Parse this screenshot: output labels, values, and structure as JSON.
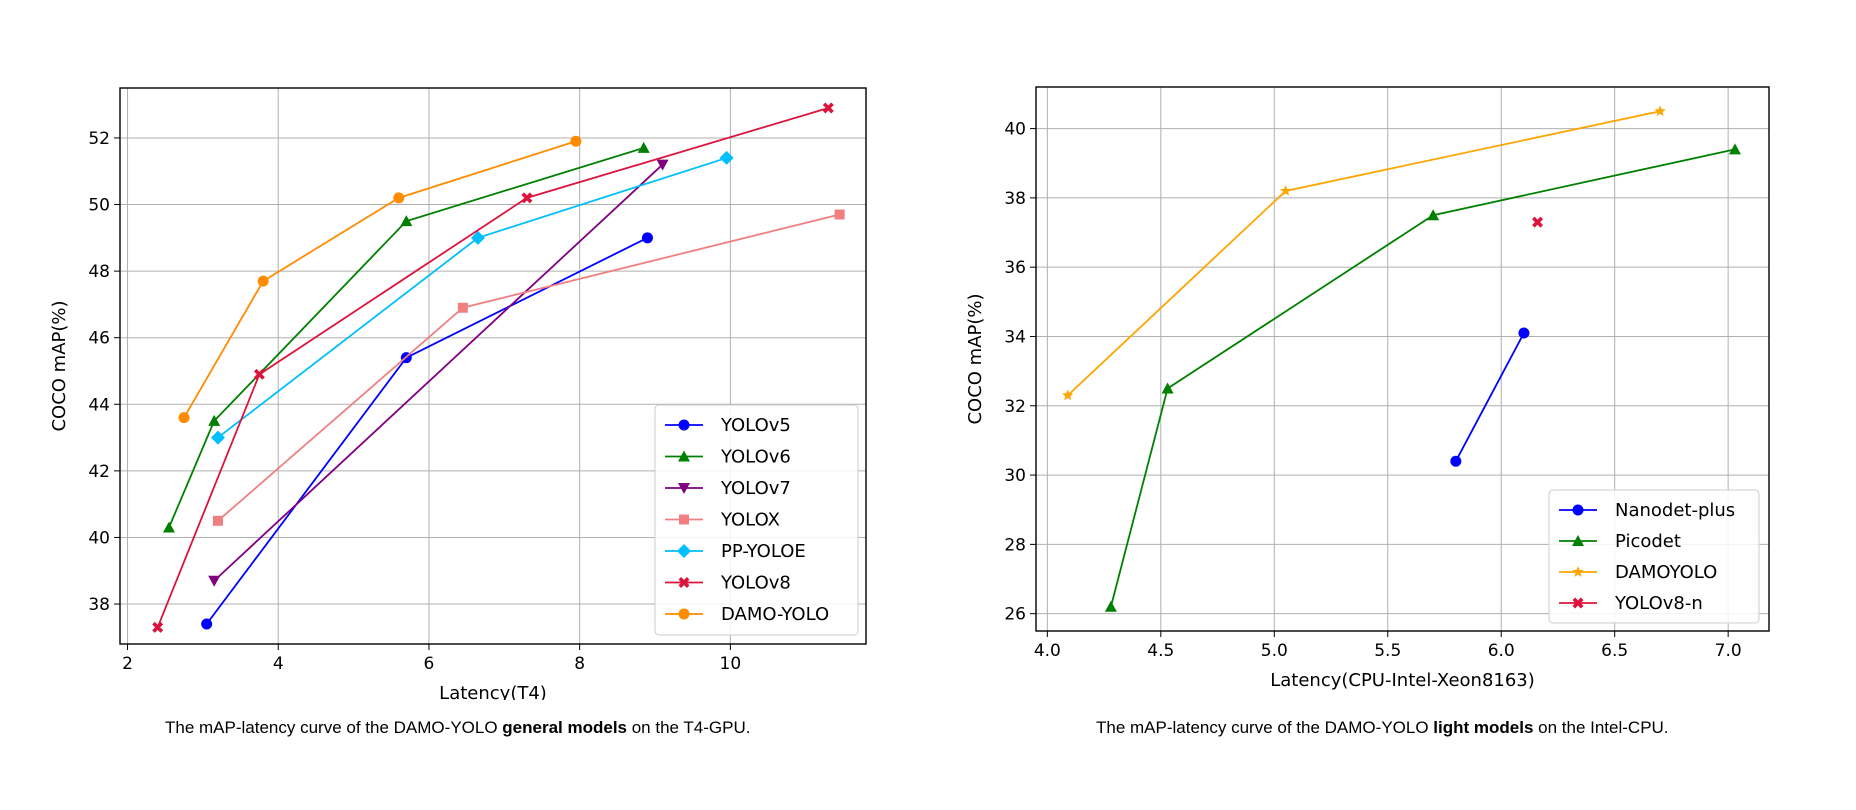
{
  "chart_data": [
    {
      "type": "line",
      "xlabel": "Latency(T4)",
      "ylabel": "COCO mAP(%)",
      "xlim": [
        1.9,
        11.8
      ],
      "ylim": [
        36.8,
        53.5
      ],
      "xticks": [
        2,
        4,
        6,
        8,
        10
      ],
      "yticks": [
        38,
        40,
        42,
        44,
        46,
        48,
        50,
        52
      ],
      "grid": true,
      "legend_position": "lower-right",
      "series": [
        {
          "name": "YOLOv5",
          "color": "#0000ff",
          "marker": "circle",
          "points": [
            [
              3.05,
              37.4
            ],
            [
              5.7,
              45.4
            ],
            [
              8.9,
              49.0
            ]
          ]
        },
        {
          "name": "YOLOv6",
          "color": "#008000",
          "marker": "triangle-up",
          "points": [
            [
              2.55,
              40.3
            ],
            [
              3.15,
              43.5
            ],
            [
              5.7,
              49.5
            ],
            [
              8.85,
              51.7
            ]
          ]
        },
        {
          "name": "YOLOv7",
          "color": "#800080",
          "marker": "triangle-down",
          "points": [
            [
              3.15,
              38.7
            ],
            [
              9.1,
              51.2
            ]
          ]
        },
        {
          "name": "YOLOX",
          "color": "#f08080",
          "marker": "square",
          "points": [
            [
              3.2,
              40.5
            ],
            [
              6.45,
              46.9
            ],
            [
              11.45,
              49.7
            ]
          ]
        },
        {
          "name": "PP-YOLOE",
          "color": "#00bfff",
          "marker": "diamond",
          "points": [
            [
              3.2,
              43.0
            ],
            [
              6.65,
              49.0
            ],
            [
              9.95,
              51.4
            ]
          ]
        },
        {
          "name": "YOLOv8",
          "color": "#dc143c",
          "marker": "x",
          "points": [
            [
              2.4,
              37.3
            ],
            [
              3.75,
              44.9
            ],
            [
              7.3,
              50.2
            ],
            [
              11.3,
              52.9
            ]
          ]
        },
        {
          "name": "DAMO-YOLO",
          "color": "#ff8c00",
          "marker": "circle",
          "points": [
            [
              2.75,
              43.6
            ],
            [
              3.8,
              47.7
            ],
            [
              5.6,
              50.2
            ],
            [
              7.95,
              51.9
            ]
          ]
        }
      ]
    },
    {
      "type": "line",
      "xlabel": "Latency(CPU-Intel-Xeon8163)",
      "ylabel": "COCO mAP(%)",
      "xlim": [
        3.95,
        7.18
      ],
      "ylim": [
        25.5,
        41.2
      ],
      "xticks": [
        4.0,
        4.5,
        5.0,
        5.5,
        6.0,
        6.5,
        7.0
      ],
      "xtick_labels": [
        "4.0",
        "4.5",
        "5.0",
        "5.5",
        "6.0",
        "6.5",
        "7.0"
      ],
      "yticks": [
        26,
        28,
        30,
        32,
        34,
        36,
        38,
        40
      ],
      "grid": true,
      "legend_position": "lower-right",
      "series": [
        {
          "name": "Nanodet-plus",
          "color": "#0000ff",
          "marker": "circle",
          "points": [
            [
              5.8,
              30.4
            ],
            [
              6.1,
              34.1
            ]
          ]
        },
        {
          "name": "Picodet",
          "color": "#008000",
          "marker": "triangle-up",
          "points": [
            [
              4.28,
              26.2
            ],
            [
              4.53,
              32.5
            ],
            [
              5.7,
              37.5
            ],
            [
              7.03,
              39.4
            ]
          ]
        },
        {
          "name": "DAMOYOLO",
          "color": "#ffa500",
          "marker": "star",
          "points": [
            [
              4.09,
              32.3
            ],
            [
              5.05,
              38.2
            ],
            [
              6.7,
              40.5
            ]
          ]
        },
        {
          "name": "YOLOv8-n",
          "color": "#dc143c",
          "marker": "x",
          "no_line": true,
          "points": [
            [
              6.16,
              37.3
            ]
          ]
        }
      ]
    }
  ],
  "captions": {
    "left": {
      "pre": "The mAP-latency curve of the DAMO-YOLO ",
      "bold": "general models",
      "post": " on the T4-GPU."
    },
    "right": {
      "pre": "The mAP-latency curve of the DAMO-YOLO ",
      "bold": "light models",
      "post": " on the Intel-CPU."
    }
  }
}
